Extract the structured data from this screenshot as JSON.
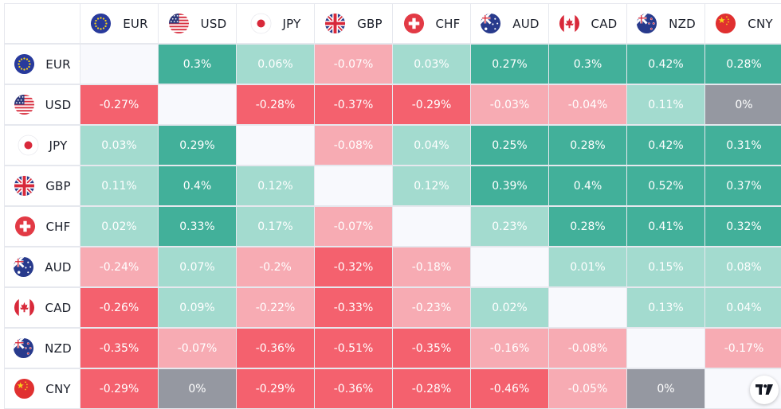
{
  "currencies": [
    {
      "code": "EUR",
      "flag": "eu-flag-icon"
    },
    {
      "code": "USD",
      "flag": "us-flag-icon"
    },
    {
      "code": "JPY",
      "flag": "jp-flag-icon"
    },
    {
      "code": "GBP",
      "flag": "gb-flag-icon"
    },
    {
      "code": "CHF",
      "flag": "ch-flag-icon"
    },
    {
      "code": "AUD",
      "flag": "au-flag-icon"
    },
    {
      "code": "CAD",
      "flag": "ca-flag-icon"
    },
    {
      "code": "NZD",
      "flag": "nz-flag-icon"
    },
    {
      "code": "CNY",
      "flag": "cn-flag-icon"
    }
  ],
  "chart_data": {
    "type": "heatmap",
    "rows": [
      "EUR",
      "USD",
      "JPY",
      "GBP",
      "CHF",
      "AUD",
      "CAD",
      "NZD",
      "CNY"
    ],
    "columns": [
      "EUR",
      "USD",
      "JPY",
      "GBP",
      "CHF",
      "AUD",
      "CAD",
      "NZD",
      "CNY"
    ],
    "unit": "%",
    "values": [
      [
        null,
        "0.3%",
        "0.06%",
        "-0.07%",
        "0.03%",
        "0.27%",
        "0.3%",
        "0.42%",
        "0.28%"
      ],
      [
        "-0.27%",
        null,
        "-0.28%",
        "-0.37%",
        "-0.29%",
        "-0.03%",
        "-0.04%",
        "0.11%",
        "0%"
      ],
      [
        "0.03%",
        "0.29%",
        null,
        "-0.08%",
        "0.04%",
        "0.25%",
        "0.28%",
        "0.42%",
        "0.31%"
      ],
      [
        "0.11%",
        "0.4%",
        "0.12%",
        null,
        "0.12%",
        "0.39%",
        "0.4%",
        "0.52%",
        "0.37%"
      ],
      [
        "0.02%",
        "0.33%",
        "0.17%",
        "-0.07%",
        null,
        "0.23%",
        "0.28%",
        "0.41%",
        "0.32%"
      ],
      [
        "-0.24%",
        "0.07%",
        "-0.2%",
        "-0.32%",
        "-0.18%",
        null,
        "0.01%",
        "0.15%",
        "0.08%"
      ],
      [
        "-0.26%",
        "0.09%",
        "-0.22%",
        "-0.33%",
        "-0.23%",
        "0.02%",
        null,
        "0.13%",
        "0.04%"
      ],
      [
        "-0.35%",
        "-0.07%",
        "-0.36%",
        "-0.51%",
        "-0.35%",
        "-0.16%",
        "-0.08%",
        null,
        "-0.17%"
      ],
      [
        "-0.29%",
        "0%",
        "-0.29%",
        "-0.36%",
        "-0.28%",
        "-0.46%",
        "-0.05%",
        "0%",
        null
      ]
    ],
    "colors": {
      "strong_positive": "#42b09a",
      "light_positive": "#a3dbcf",
      "zero": "#9598a1",
      "light_negative": "#f7abb3",
      "strong_negative": "#f4616e",
      "empty": "#f8f9fd"
    },
    "thresholds": {
      "strong": 0.25,
      "strong_negative": 0.25
    }
  },
  "branding": {
    "logo": "tradingview-logo-icon"
  }
}
